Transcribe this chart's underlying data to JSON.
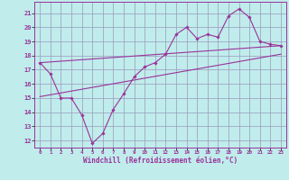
{
  "xlabel": "Windchill (Refroidissement éolien,°C)",
  "bg_color": "#c0ecec",
  "grid_color": "#9999bb",
  "line_color": "#993399",
  "xlim": [
    -0.5,
    23.5
  ],
  "ylim": [
    11.5,
    21.8
  ],
  "xticks": [
    0,
    1,
    2,
    3,
    4,
    5,
    6,
    7,
    8,
    9,
    10,
    11,
    12,
    13,
    14,
    15,
    16,
    17,
    18,
    19,
    20,
    21,
    22,
    23
  ],
  "yticks": [
    12,
    13,
    14,
    15,
    16,
    17,
    18,
    19,
    20,
    21
  ],
  "line1_x": [
    0,
    1,
    2,
    3,
    4,
    5,
    6,
    7,
    8,
    9,
    10,
    11,
    12,
    13,
    14,
    15,
    16,
    17,
    18,
    19,
    20,
    21,
    22,
    23
  ],
  "line1_y": [
    17.5,
    16.7,
    15.0,
    15.0,
    13.8,
    11.8,
    12.5,
    14.2,
    15.3,
    16.5,
    17.2,
    17.5,
    18.1,
    19.5,
    20.0,
    19.2,
    19.5,
    19.3,
    20.8,
    21.3,
    20.7,
    19.0,
    18.8,
    18.7
  ],
  "line2_x": [
    0,
    23
  ],
  "line2_y": [
    15.1,
    18.1
  ],
  "line3_x": [
    0,
    23
  ],
  "line3_y": [
    17.5,
    18.7
  ]
}
